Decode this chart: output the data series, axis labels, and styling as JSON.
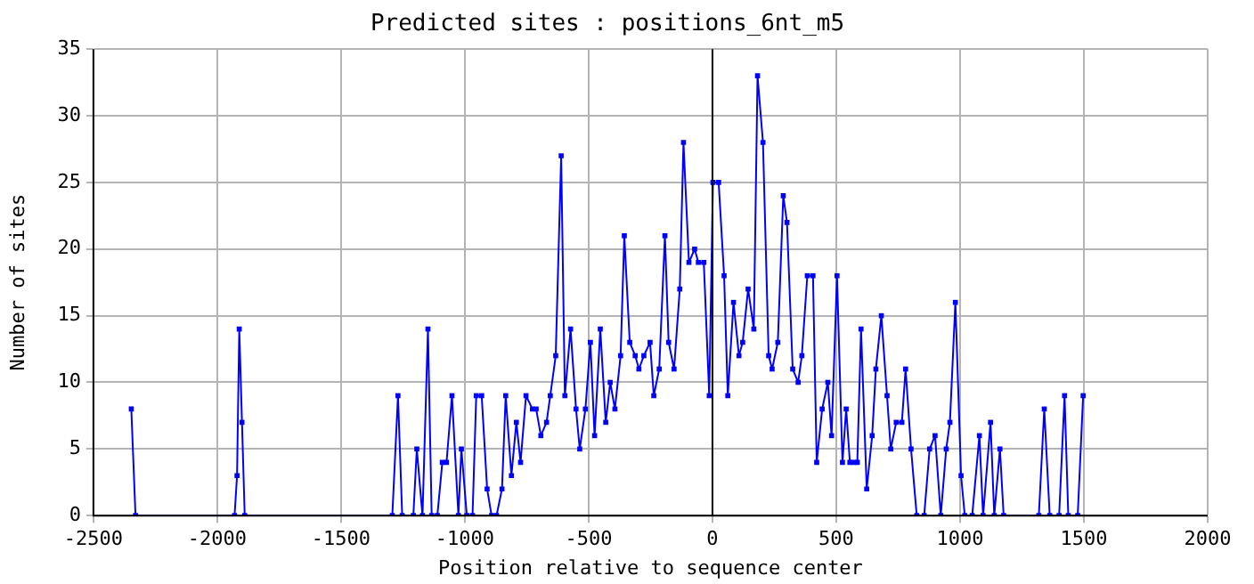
{
  "chart_data": {
    "type": "line",
    "title": "Predicted sites : positions_6nt_m5",
    "xlabel": "Position relative to sequence center",
    "ylabel": "Number of sites",
    "x": [
      -2347,
      -2330,
      -1930,
      -1920,
      -1911,
      -1900,
      -1889,
      -1293,
      -1270,
      -1253,
      -1208,
      -1194,
      -1171,
      -1149,
      -1134,
      -1111,
      -1091,
      -1074,
      -1052,
      -1026,
      -1014,
      -992,
      -969,
      -954,
      -932,
      -910,
      -892,
      -872,
      -850,
      -835,
      -812,
      -792,
      -775,
      -753,
      -727,
      -712,
      -693,
      -670,
      -655,
      -633,
      -611,
      -596,
      -573,
      -551,
      -536,
      -513,
      -493,
      -476,
      -453,
      -431,
      -413,
      -394,
      -371,
      -356,
      -334,
      -312,
      -297,
      -277,
      -252,
      -237,
      -215,
      -192,
      -177,
      -155,
      -132,
      -117,
      -95,
      -72,
      -57,
      -35,
      -13,
      2,
      25,
      47,
      62,
      85,
      107,
      122,
      144,
      167,
      182,
      204,
      227,
      241,
      264,
      286,
      301,
      324,
      346,
      361,
      383,
      406,
      421,
      443,
      466,
      481,
      503,
      525,
      540,
      555,
      570,
      585,
      600,
      623,
      645,
      660,
      682,
      705,
      720,
      742,
      765,
      780,
      802,
      825,
      855,
      877,
      899,
      922,
      944,
      959,
      981,
      1004,
      1019,
      1049,
      1078,
      1093,
      1123,
      1138,
      1161,
      1176,
      1318,
      1340,
      1362,
      1400,
      1422,
      1437,
      1475,
      1497
    ],
    "values": [
      8,
      0,
      0,
      3,
      14,
      7,
      0,
      0,
      9,
      0,
      0,
      5,
      0,
      14,
      0,
      0,
      4,
      4,
      9,
      0,
      5,
      0,
      0,
      9,
      9,
      2,
      0,
      0,
      2,
      9,
      3,
      7,
      4,
      9,
      8,
      8,
      6,
      7,
      9,
      12,
      27,
      9,
      14,
      8,
      5,
      8,
      13,
      6,
      14,
      7,
      10,
      8,
      12,
      21,
      13,
      12,
      11,
      12,
      13,
      9,
      11,
      21,
      13,
      11,
      17,
      28,
      19,
      20,
      19,
      19,
      9,
      25,
      25,
      18,
      9,
      16,
      12,
      13,
      17,
      14,
      33,
      28,
      12,
      11,
      13,
      24,
      22,
      11,
      10,
      12,
      18,
      18,
      4,
      8,
      10,
      6,
      18,
      4,
      8,
      4,
      4,
      4,
      14,
      2,
      6,
      11,
      15,
      9,
      5,
      7,
      7,
      11,
      5,
      0,
      0,
      5,
      6,
      0,
      5,
      7,
      16,
      3,
      0,
      0,
      6,
      0,
      7,
      0,
      5,
      0,
      0,
      8,
      0,
      0,
      9,
      0,
      0,
      9
    ],
    "color": "#0000ff",
    "marker": "square",
    "line_style": "solid",
    "xlim": [
      -2500,
      2000
    ],
    "xticks": [
      -2500,
      -2000,
      -1500,
      -1000,
      -500,
      0,
      500,
      1000,
      1500,
      2000
    ],
    "ylim": [
      0,
      35
    ],
    "yticks": [
      0,
      5,
      10,
      15,
      20,
      25,
      30,
      35
    ],
    "grid": true,
    "legend": false,
    "ref_lines": [
      {
        "axis": "x",
        "value": 0,
        "color": "#000000"
      }
    ]
  }
}
